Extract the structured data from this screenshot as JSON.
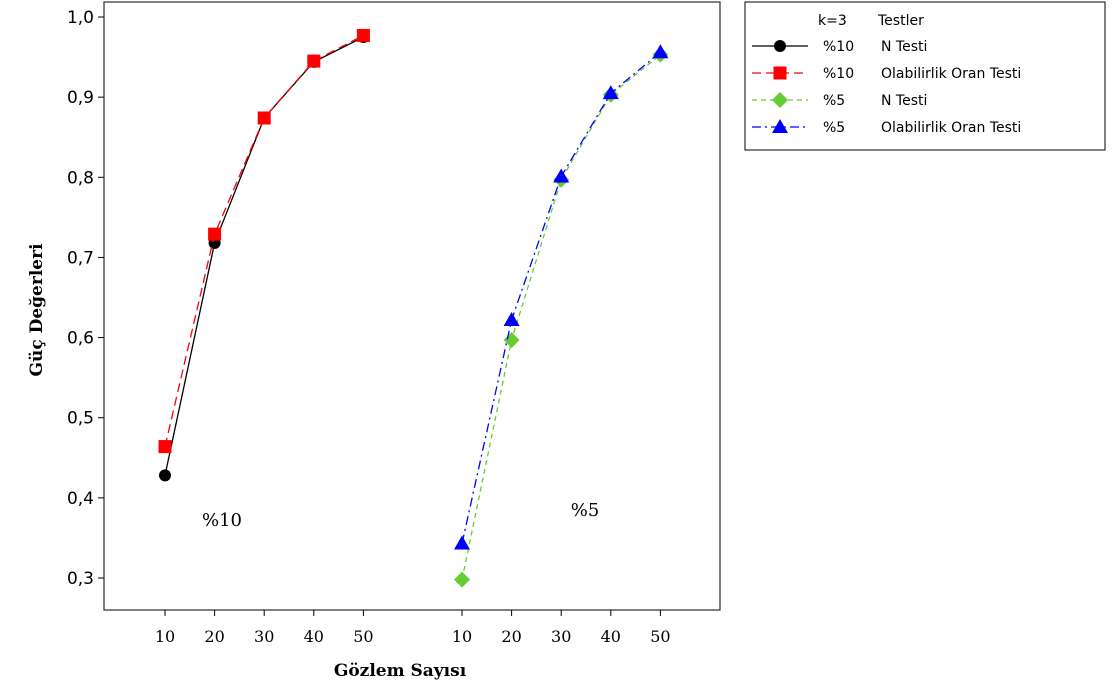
{
  "chart_data": {
    "type": "line",
    "xlabel": "Gözlem Sayısı",
    "ylabel": "Güç Değerleri",
    "ylim": [
      0.28,
      1.0
    ],
    "yticks": [
      "0,3",
      "0,4",
      "0,5",
      "0,6",
      "0,7",
      "0,8",
      "0,9",
      "1,0"
    ],
    "ytick_values": [
      0.3,
      0.4,
      0.5,
      0.6,
      0.7,
      0.8,
      0.9,
      1.0
    ],
    "x_categories": [
      "10",
      "20",
      "30",
      "40",
      "50"
    ],
    "grid": false,
    "legend": {
      "placement": "outside-top-right",
      "header_k": "k=3",
      "header_title": "Testler",
      "entries": [
        {
          "level": "%10",
          "test": "N Testi"
        },
        {
          "level": "%10",
          "test": "Olabilirlik Oran Testi"
        },
        {
          "level": "%5",
          "test": "N Testi"
        },
        {
          "level": "%5",
          "test": "Olabilirlik Oran Testi"
        }
      ]
    },
    "panels": [
      {
        "annotation": "%10",
        "x": [
          10,
          20,
          30,
          40,
          50
        ],
        "series": [
          {
            "name": "N Testi",
            "values": [
              0.428,
              0.718,
              0.874,
              0.944,
              0.975
            ],
            "color": "#000000",
            "marker": "circle",
            "dash": "solid"
          },
          {
            "name": "Olabilirlik Oran Testi",
            "values": [
              0.464,
              0.729,
              0.874,
              0.945,
              0.977
            ],
            "color": "#ff0000",
            "marker": "square",
            "dash": "long-dash"
          }
        ]
      },
      {
        "annotation": "%5",
        "x": [
          10,
          20,
          30,
          40,
          50
        ],
        "series": [
          {
            "name": "N Testi",
            "values": [
              0.298,
              0.597,
              0.797,
              0.903,
              0.953
            ],
            "color": "#66cc33",
            "marker": "diamond",
            "dash": "short-dash"
          },
          {
            "name": "Olabilirlik Oran Testi",
            "values": [
              0.343,
              0.622,
              0.801,
              0.905,
              0.956
            ],
            "color": "#0000ff",
            "marker": "triangle",
            "dash": "dash-dot"
          }
        ]
      }
    ]
  }
}
